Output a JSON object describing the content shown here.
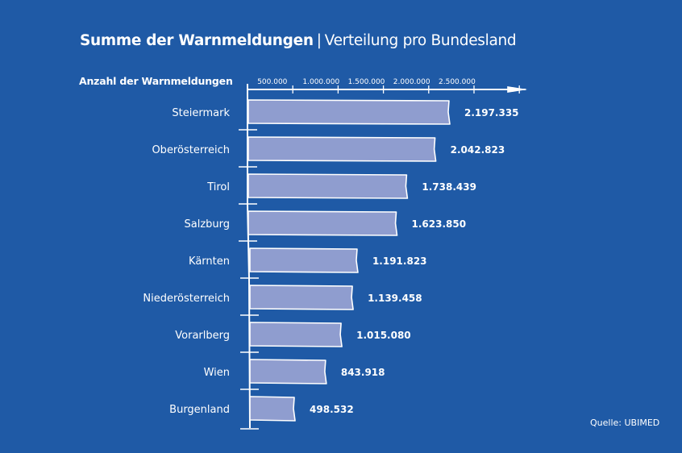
{
  "chart_data": {
    "type": "bar",
    "orientation": "horizontal",
    "title": "Summe der Warnmeldungen",
    "subtitle": "Verteilung pro Bundesland",
    "xlabel": "Anzahl der Warnmeldungen",
    "ylabel": "",
    "xlim": [
      0,
      3000000
    ],
    "xticks": [
      500000,
      1000000,
      1500000,
      2000000,
      2500000
    ],
    "xtick_labels": [
      "500.000",
      "1.000.000",
      "1.500.000",
      "2.000.000",
      "2.500.000"
    ],
    "grid": false,
    "legend": "none",
    "categories": [
      "Steiermark",
      "Oberösterreich",
      "Tirol",
      "Salzburg",
      "Kärnten",
      "Niederösterreich",
      "Vorarlberg",
      "Wien",
      "Burgenland"
    ],
    "values": [
      2197335,
      2042823,
      1738439,
      1623850,
      1191823,
      1139458,
      1015080,
      843918,
      498532
    ],
    "value_labels": [
      "2.197.335",
      "2.042.823",
      "1.738.439",
      "1.623.850",
      "1.191.823",
      "1.139.458",
      "1.015.080",
      "843.918",
      "498.532"
    ],
    "source": "Quelle: UBIMED",
    "colors": {
      "background": "#1f5aa6",
      "bar_fill": "#8f9dcf",
      "bar_stroke": "#ffffff",
      "text": "#ffffff"
    }
  }
}
